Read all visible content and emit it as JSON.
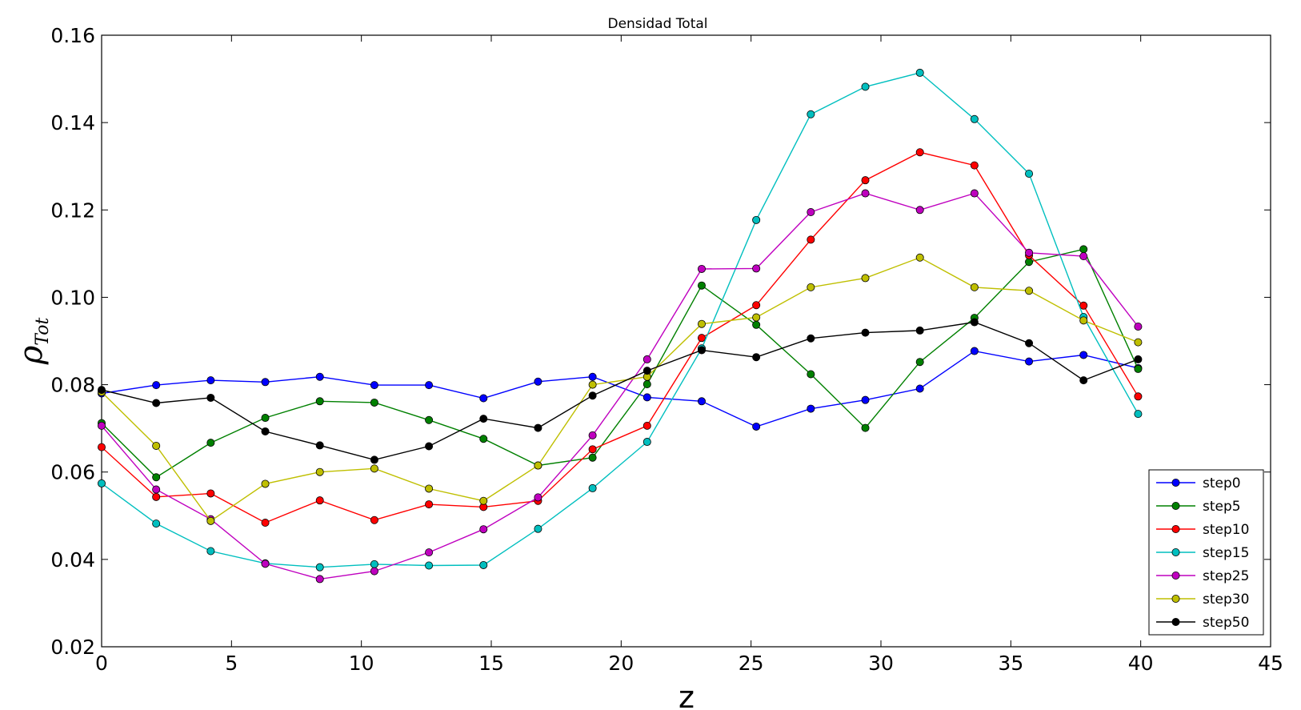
{
  "chart_data": {
    "type": "line",
    "title": "Densidad Total",
    "xlabel": "z",
    "ylabel": {
      "symbol": "ρ",
      "subscript": "Tot"
    },
    "xlim": [
      0,
      45
    ],
    "ylim": [
      0.02,
      0.16
    ],
    "xticks": [
      0,
      5,
      10,
      15,
      20,
      25,
      30,
      35,
      40,
      45
    ],
    "yticks": [
      0.02,
      0.04,
      0.06,
      0.08,
      0.1,
      0.12,
      0.14,
      0.16
    ],
    "xtick_labels": [
      "0",
      "5",
      "10",
      "15",
      "20",
      "25",
      "30",
      "35",
      "40",
      "45"
    ],
    "ytick_labels": [
      "0.02",
      "0.04",
      "0.06",
      "0.08",
      "0.10",
      "0.12",
      "0.14",
      "0.16"
    ],
    "grid": false,
    "legend_position": "lower-right",
    "x": [
      0,
      2.1,
      4.2,
      6.3,
      8.4,
      10.5,
      12.6,
      14.7,
      16.8,
      18.9,
      21.0,
      23.1,
      25.2,
      27.3,
      29.4,
      31.5,
      33.6,
      35.7,
      37.8,
      39.9
    ],
    "series": [
      {
        "name": "step0",
        "color": "#0000ff",
        "values": [
          0.078,
          0.0799,
          0.081,
          0.0806,
          0.0818,
          0.0799,
          0.0799,
          0.0769,
          0.0807,
          0.0818,
          0.0771,
          0.0762,
          0.0704,
          0.0745,
          0.0765,
          0.0791,
          0.0877,
          0.0853,
          0.0868,
          0.0838
        ]
      },
      {
        "name": "step5",
        "color": "#008000",
        "values": [
          0.0712,
          0.0588,
          0.0667,
          0.0724,
          0.0762,
          0.0759,
          0.0719,
          0.0676,
          0.0615,
          0.0633,
          0.0801,
          0.1027,
          0.0937,
          0.0824,
          0.0701,
          0.0852,
          0.0953,
          0.1081,
          0.111,
          0.0836
        ]
      },
      {
        "name": "step10",
        "color": "#ff0000",
        "values": [
          0.0657,
          0.0543,
          0.0551,
          0.0484,
          0.0535,
          0.049,
          0.0526,
          0.052,
          0.0534,
          0.0652,
          0.0706,
          0.0907,
          0.0982,
          0.1132,
          0.1268,
          0.1332,
          0.1302,
          0.1096,
          0.0981,
          0.0773
        ]
      },
      {
        "name": "step15",
        "color": "#00bfbf",
        "values": [
          0.0574,
          0.0482,
          0.0419,
          0.0391,
          0.0382,
          0.0389,
          0.0386,
          0.0387,
          0.047,
          0.0563,
          0.0669,
          0.0883,
          0.1177,
          0.1419,
          0.1482,
          0.1514,
          0.1408,
          0.1283,
          0.0955,
          0.0733
        ]
      },
      {
        "name": "step25",
        "color": "#bf00bf",
        "values": [
          0.0706,
          0.056,
          0.0492,
          0.039,
          0.0355,
          0.0373,
          0.0416,
          0.0469,
          0.0542,
          0.0684,
          0.0858,
          0.1065,
          0.1066,
          0.1195,
          0.1238,
          0.12,
          0.1238,
          0.1102,
          0.1094,
          0.0933
        ]
      },
      {
        "name": "step30",
        "color": "#bfbf00",
        "values": [
          0.0783,
          0.066,
          0.0488,
          0.0573,
          0.06,
          0.0608,
          0.0562,
          0.0534,
          0.0615,
          0.08,
          0.0818,
          0.0939,
          0.0954,
          0.1023,
          0.1044,
          0.1091,
          0.1023,
          0.1015,
          0.0947,
          0.0897
        ]
      },
      {
        "name": "step50",
        "color": "#000000",
        "values": [
          0.0788,
          0.0758,
          0.077,
          0.0693,
          0.0661,
          0.0628,
          0.0659,
          0.0722,
          0.0701,
          0.0775,
          0.0832,
          0.0879,
          0.0863,
          0.0906,
          0.0919,
          0.0924,
          0.0943,
          0.0895,
          0.081,
          0.0858
        ]
      }
    ]
  }
}
